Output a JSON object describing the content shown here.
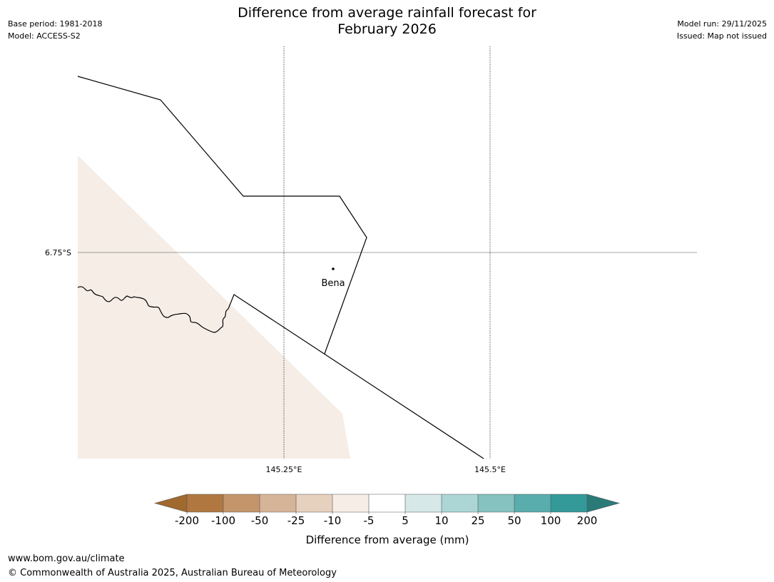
{
  "header": {
    "title_line1": "Difference from average rainfall forecast for",
    "title_line2": "February 2026",
    "base_period": "Base period: 1981-2018",
    "model": "Model: ACCESS-S2",
    "model_run": "Model run: 29/11/2025",
    "issued": "Issued: Map not issued"
  },
  "map": {
    "lat_label": "6.75°S",
    "lon_labels": [
      "145.25°E",
      "145.5°E"
    ],
    "place_name": "Bena",
    "shaded_region_color": "#f5ede6",
    "border_color": "#000000"
  },
  "colorbar": {
    "title": "Difference from average (mm)",
    "tick_labels": [
      "-200",
      "-100",
      "-50",
      "-25",
      "-10",
      "-5",
      "5",
      "10",
      "25",
      "50",
      "100",
      "200"
    ],
    "colors": [
      "#a0692e",
      "#b07840",
      "#c4956a",
      "#d6b497",
      "#e6d0be",
      "#f5ede6",
      "#ffffff",
      "#d6e8e8",
      "#acd6d6",
      "#85c2c0",
      "#5aadad",
      "#339999",
      "#2a7a78"
    ]
  },
  "footer": {
    "url": "www.bom.gov.au/climate",
    "copyright": "© Commonwealth of Australia 2025, Australian Bureau of Meteorology"
  }
}
